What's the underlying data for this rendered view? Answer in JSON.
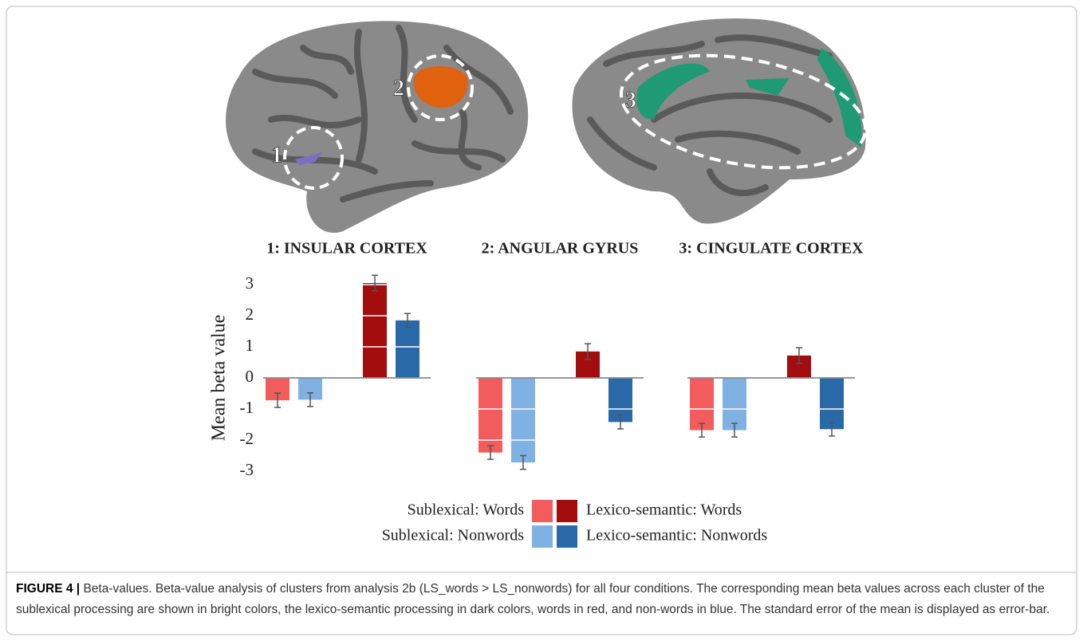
{
  "figure": {
    "label": "FIGURE 4 |",
    "caption": "Beta-values. Beta-value analysis of clusters from analysis 2b (LS_words > LS_nonwords) for all four conditions. The corresponding mean beta values across each cluster of the sublexical processing are shown in bright colors, the lexico-semantic processing in dark colors, words in red, and non-words in blue. The standard error of the mean is displayed as error-bar."
  },
  "brain_labels": [
    "1",
    "2",
    "3"
  ],
  "chart_data": {
    "type": "bar",
    "categories": [
      "1: INSULAR CORTEX",
      "2: ANGULAR GYRUS",
      "3: CINGULATE CORTEX"
    ],
    "y_label": "Mean beta value",
    "ylim": [
      -3.3,
      3.4
    ],
    "yticks": [
      3,
      2,
      1,
      0,
      -1,
      -2,
      -3
    ],
    "grid": true,
    "series": [
      {
        "name": "Sublexical: Words",
        "color": "#f25c5c",
        "values": [
          -0.72,
          -2.4,
          -1.68
        ],
        "errors": [
          0.23,
          0.22,
          0.22
        ]
      },
      {
        "name": "Sublexical: Nonwords",
        "color": "#7fb1e3",
        "values": [
          -0.7,
          -2.72,
          -1.68
        ],
        "errors": [
          0.22,
          0.22,
          0.22
        ]
      },
      {
        "name": "Lexico-semantic: Words",
        "color": "#a30d0d",
        "values": [
          3.05,
          0.85,
          0.72
        ],
        "errors": [
          0.25,
          0.25,
          0.25
        ]
      },
      {
        "name": "Lexico-semantic: Nonwords",
        "color": "#2a69a8",
        "values": [
          1.85,
          -1.42,
          -1.65
        ],
        "errors": [
          0.22,
          0.22,
          0.22
        ]
      }
    ]
  }
}
